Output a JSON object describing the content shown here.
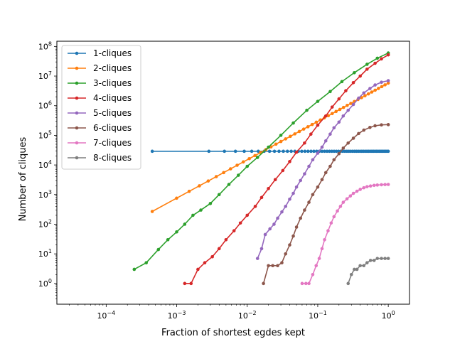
{
  "chart_data": {
    "type": "line",
    "title": "",
    "xlabel": "Fraction of shortest egdes kept",
    "ylabel": "Number of cliques",
    "xscale": "log",
    "yscale": "log",
    "xlim": [
      2e-05,
      2.0
    ],
    "ylim": [
      0.2,
      150000000.0
    ],
    "xticks": [
      {
        "value": 0.0001,
        "base": "10",
        "exp": "−4"
      },
      {
        "value": 0.001,
        "base": "10",
        "exp": "−3"
      },
      {
        "value": 0.01,
        "base": "10",
        "exp": "−2"
      },
      {
        "value": 0.1,
        "base": "10",
        "exp": "−1"
      },
      {
        "value": 1,
        "base": "10",
        "exp": "0"
      }
    ],
    "yticks": [
      {
        "value": 1,
        "base": "10",
        "exp": "0"
      },
      {
        "value": 10,
        "base": "10",
        "exp": "1"
      },
      {
        "value": 100,
        "base": "10",
        "exp": "2"
      },
      {
        "value": 1000,
        "base": "10",
        "exp": "3"
      },
      {
        "value": 10000,
        "base": "10",
        "exp": "4"
      },
      {
        "value": 100000,
        "base": "10",
        "exp": "5"
      },
      {
        "value": 1000000,
        "base": "10",
        "exp": "6"
      },
      {
        "value": 10000000,
        "base": "10",
        "exp": "7"
      },
      {
        "value": 100000000,
        "base": "10",
        "exp": "8"
      }
    ],
    "grid": false,
    "legend_position": "upper-left",
    "series": [
      {
        "name": "1-cliques",
        "color": "#1f77b4",
        "kind": "flat",
        "x_start": 0.00045,
        "x_end": 1.0,
        "y": 29000
      },
      {
        "name": "2-cliques",
        "color": "#ff7f0e",
        "kind": "power",
        "x_start": 0.00045,
        "x_end": 1.0,
        "y_start": 270,
        "y_end": 5800000
      },
      {
        "name": "3-cliques",
        "color": "#2ca02c",
        "kind": "points",
        "x": [
          0.00025,
          0.00037,
          0.00055,
          0.00075,
          0.001,
          0.0013,
          0.0017,
          0.0022,
          0.003,
          0.004,
          0.0055,
          0.0075,
          0.01,
          0.014,
          0.02,
          0.03,
          0.045,
          0.07,
          0.1,
          0.15,
          0.22,
          0.33,
          0.5,
          0.7,
          1.0
        ],
        "values": [
          3,
          5,
          14,
          30,
          55,
          100,
          200,
          300,
          500,
          1000,
          2200,
          4500,
          9000,
          18000,
          40000,
          100000,
          260000,
          700000,
          1400000,
          3000000,
          6500000,
          13000000,
          25000000,
          40000000,
          60000000
        ]
      },
      {
        "name": "4-cliques",
        "color": "#d62728",
        "kind": "points",
        "x": [
          0.0013,
          0.0016,
          0.002,
          0.0025,
          0.0032,
          0.004,
          0.005,
          0.0065,
          0.008,
          0.01,
          0.013,
          0.016,
          0.02,
          0.025,
          0.032,
          0.04,
          0.05,
          0.065,
          0.08,
          0.1,
          0.13,
          0.16,
          0.2,
          0.25,
          0.32,
          0.4,
          0.5,
          0.65,
          0.8,
          1.0
        ],
        "values": [
          1,
          1,
          3,
          5,
          8,
          15,
          30,
          60,
          110,
          200,
          400,
          800,
          1600,
          3200,
          6500,
          13000,
          27000,
          55000,
          110000,
          220000,
          450000,
          900000,
          1700000,
          3200000,
          6000000,
          10000000,
          17000000,
          27000000,
          38000000,
          52000000
        ]
      },
      {
        "name": "5-cliques",
        "color": "#9467bd",
        "kind": "points",
        "x": [
          0.014,
          0.016,
          0.018,
          0.021,
          0.024,
          0.027,
          0.031,
          0.035,
          0.04,
          0.045,
          0.05,
          0.057,
          0.065,
          0.075,
          0.085,
          0.1,
          0.115,
          0.13,
          0.15,
          0.17,
          0.2,
          0.23,
          0.27,
          0.32,
          0.38,
          0.45,
          0.55,
          0.65,
          0.8,
          1.0
        ],
        "values": [
          7,
          15,
          45,
          70,
          100,
          160,
          260,
          400,
          700,
          1100,
          1800,
          3000,
          5000,
          9000,
          15000,
          25000,
          40000,
          65000,
          110000,
          180000,
          280000,
          450000,
          700000,
          1100000,
          1800000,
          2700000,
          3800000,
          5000000,
          6200000,
          7000000
        ]
      },
      {
        "name": "6-cliques",
        "color": "#8c564b",
        "kind": "points",
        "x": [
          0.017,
          0.02,
          0.023,
          0.027,
          0.031,
          0.035,
          0.04,
          0.045,
          0.05,
          0.057,
          0.065,
          0.075,
          0.085,
          0.1,
          0.115,
          0.13,
          0.15,
          0.17,
          0.2,
          0.23,
          0.27,
          0.32,
          0.38,
          0.45,
          0.55,
          0.65,
          0.8,
          1.0
        ],
        "values": [
          1,
          4,
          4,
          4,
          5,
          10,
          20,
          40,
          80,
          160,
          300,
          550,
          1000,
          1800,
          3200,
          5500,
          9000,
          15000,
          24000,
          37000,
          55000,
          80000,
          115000,
          150000,
          185000,
          210000,
          225000,
          230000
        ]
      },
      {
        "name": "7-cliques",
        "color": "#e377c2",
        "kind": "points",
        "x": [
          0.06,
          0.068,
          0.075,
          0.085,
          0.095,
          0.105,
          0.115,
          0.125,
          0.14,
          0.155,
          0.17,
          0.19,
          0.21,
          0.23,
          0.26,
          0.29,
          0.32,
          0.36,
          0.4,
          0.45,
          0.5,
          0.56,
          0.63,
          0.7,
          0.8,
          0.9,
          1.0
        ],
        "values": [
          1,
          1,
          1,
          2,
          4,
          7,
          15,
          30,
          60,
          110,
          180,
          280,
          400,
          550,
          720,
          900,
          1100,
          1300,
          1500,
          1700,
          1850,
          1950,
          2050,
          2100,
          2150,
          2180,
          2200
        ]
      },
      {
        "name": "8-cliques",
        "color": "#7f7f7f",
        "kind": "points",
        "x": [
          0.27,
          0.3,
          0.33,
          0.36,
          0.4,
          0.45,
          0.5,
          0.56,
          0.63,
          0.7,
          0.8,
          0.9,
          1.0
        ],
        "values": [
          1,
          2,
          3,
          3,
          4,
          4,
          5,
          6,
          6,
          7,
          7,
          7,
          7
        ]
      }
    ]
  }
}
